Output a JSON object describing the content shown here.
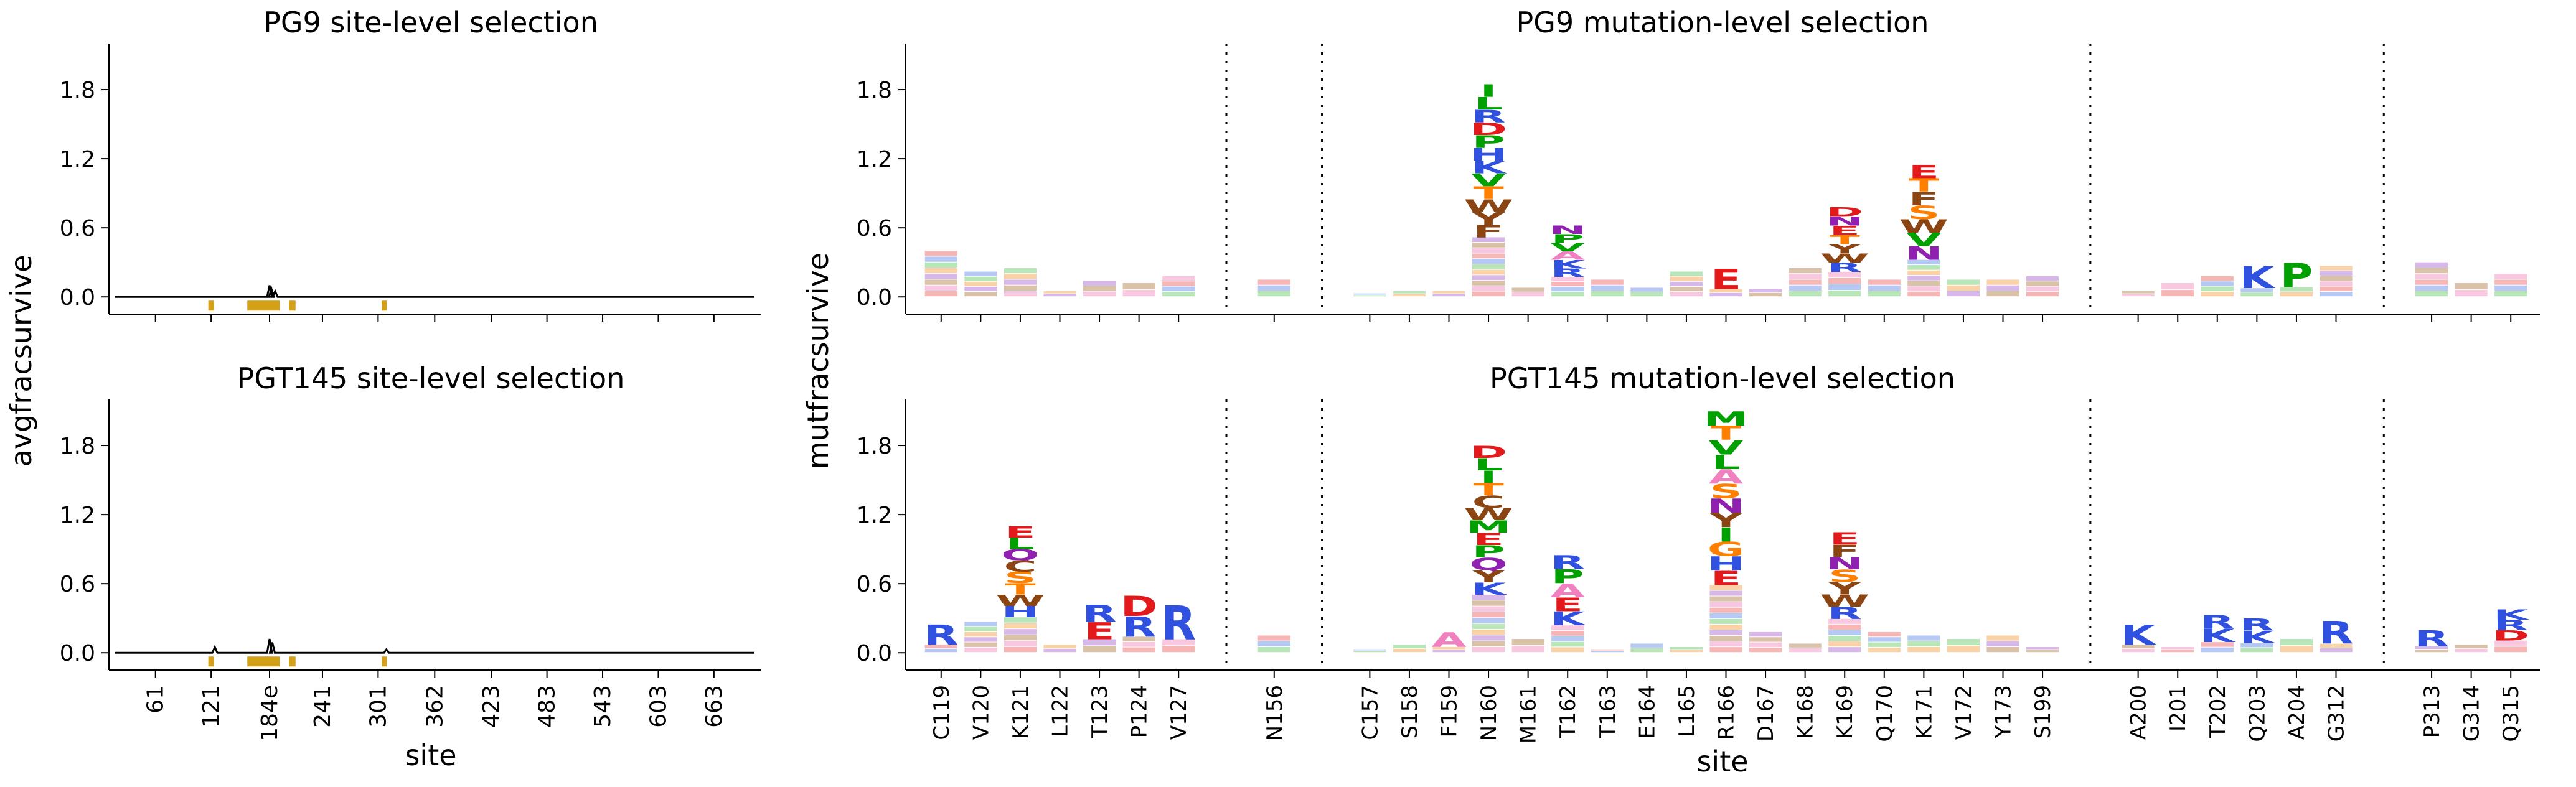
{
  "chart_data": [
    {
      "type": "line",
      "id": "pg9_site",
      "title": "PG9 site-level selection",
      "ylabel": "avgfracsurvive",
      "xlabel": "",
      "ylim": [
        -0.15,
        2.2
      ],
      "yticks": [
        "0.0",
        "0.6",
        "1.2",
        "1.8"
      ],
      "xticks": [
        "61",
        "121",
        "184e",
        "241",
        "301",
        "362",
        "423",
        "483",
        "543",
        "603",
        "663"
      ],
      "series": [
        {
          "name": "avgfracsurvive",
          "baseline": 0.0,
          "peaks": [
            {
              "x": 184,
              "y": 0.1
            },
            {
              "x": 186,
              "y": 0.07
            },
            {
              "x": 190,
              "y": 0.05
            }
          ]
        }
      ],
      "highlighted_regions_color": "#d4a017"
    },
    {
      "type": "line",
      "id": "pgt145_site",
      "title": "PGT145 site-level selection",
      "ylabel": "avgfracsurvive",
      "xlabel": "site",
      "ylim": [
        -0.15,
        2.2
      ],
      "yticks": [
        "0.0",
        "0.6",
        "1.2",
        "1.8"
      ],
      "xticks": [
        "61",
        "121",
        "184e",
        "241",
        "301",
        "362",
        "423",
        "483",
        "543",
        "603",
        "663"
      ],
      "series": [
        {
          "name": "avgfracsurvive",
          "baseline": 0.0,
          "peaks": [
            {
              "x": 125,
              "y": 0.05
            },
            {
              "x": 184,
              "y": 0.12
            },
            {
              "x": 187,
              "y": 0.09
            },
            {
              "x": 310,
              "y": 0.03
            }
          ]
        }
      ],
      "highlighted_regions_color": "#d4a017"
    },
    {
      "type": "logo",
      "id": "pg9_mut",
      "title": "PG9 mutation-level selection",
      "ylabel": "mutfracsurvive",
      "xlabel": "",
      "ylim": [
        -0.15,
        2.2
      ],
      "yticks": [
        "0.0",
        "0.6",
        "1.2",
        "1.8"
      ],
      "sites": [
        {
          "label": "C119",
          "total": 0.4
        },
        {
          "label": "V120",
          "total": 0.22
        },
        {
          "label": "K121",
          "total": 0.25
        },
        {
          "label": "L122",
          "total": 0.05
        },
        {
          "label": "T123",
          "total": 0.14
        },
        {
          "label": "P124",
          "total": 0.12
        },
        {
          "label": "V127",
          "total": 0.18
        },
        {
          "label": "N156",
          "total": 0.15
        },
        {
          "label": "C157",
          "total": 0.03
        },
        {
          "label": "S158",
          "total": 0.05
        },
        {
          "label": "F159",
          "total": 0.05
        },
        {
          "label": "N160",
          "total": 1.85,
          "letters": [
            "I",
            "L",
            "R",
            "D",
            "P",
            "H",
            "K",
            "V",
            "T",
            "W",
            "Y",
            "F"
          ]
        },
        {
          "label": "M161",
          "total": 0.08
        },
        {
          "label": "T162",
          "total": 0.62,
          "letters": [
            "N",
            "P",
            "V",
            "A",
            "K",
            "R"
          ]
        },
        {
          "label": "T163",
          "total": 0.15
        },
        {
          "label": "E164",
          "total": 0.08
        },
        {
          "label": "L165",
          "total": 0.22
        },
        {
          "label": "R166",
          "total": 0.25,
          "letters": [
            "E"
          ]
        },
        {
          "label": "D167",
          "total": 0.07
        },
        {
          "label": "K168",
          "total": 0.25
        },
        {
          "label": "K169",
          "total": 0.78,
          "letters": [
            "D",
            "N",
            "E",
            "T",
            "Y",
            "W",
            "R"
          ]
        },
        {
          "label": "Q170",
          "total": 0.15
        },
        {
          "label": "K171",
          "total": 1.15,
          "letters": [
            "E",
            "T",
            "F",
            "S",
            "W",
            "V",
            "N"
          ]
        },
        {
          "label": "V172",
          "total": 0.15
        },
        {
          "label": "Y173",
          "total": 0.15
        },
        {
          "label": "S199",
          "total": 0.18
        },
        {
          "label": "A200",
          "total": 0.05
        },
        {
          "label": "I201",
          "total": 0.12
        },
        {
          "label": "T202",
          "total": 0.18
        },
        {
          "label": "Q203",
          "total": 0.27,
          "letters": [
            "K"
          ]
        },
        {
          "label": "A204",
          "total": 0.3,
          "letters": [
            "P"
          ]
        },
        {
          "label": "G312",
          "total": 0.27
        },
        {
          "label": "P313",
          "total": 0.3
        },
        {
          "label": "G314",
          "total": 0.12
        },
        {
          "label": "Q315",
          "total": 0.2
        }
      ]
    },
    {
      "type": "logo",
      "id": "pgt145_mut",
      "title": "PGT145 mutation-level selection",
      "ylabel": "mutfracsurvive",
      "xlabel": "site",
      "ylim": [
        -0.15,
        2.2
      ],
      "yticks": [
        "0.0",
        "0.6",
        "1.2",
        "1.8"
      ],
      "sites": [
        {
          "label": "C119",
          "total": 0.25,
          "letters": [
            "R"
          ]
        },
        {
          "label": "V120",
          "total": 0.27
        },
        {
          "label": "K121",
          "total": 1.1,
          "letters": [
            "E",
            "L",
            "Q",
            "C",
            "S",
            "T",
            "W",
            "H"
          ]
        },
        {
          "label": "L122",
          "total": 0.07
        },
        {
          "label": "T123",
          "total": 0.42,
          "letters": [
            "R",
            "E"
          ]
        },
        {
          "label": "P124",
          "total": 0.5,
          "letters": [
            "D",
            "R"
          ]
        },
        {
          "label": "V127",
          "total": 0.42,
          "letters": [
            "R"
          ]
        },
        {
          "label": "N156",
          "total": 0.15
        },
        {
          "label": "C157",
          "total": 0.03
        },
        {
          "label": "S158",
          "total": 0.07
        },
        {
          "label": "F159",
          "total": 0.18,
          "letters": [
            "A"
          ]
        },
        {
          "label": "N160",
          "total": 1.8,
          "letters": [
            "D",
            "L",
            "I",
            "T",
            "C",
            "W",
            "M",
            "E",
            "P",
            "Q",
            "Y",
            "K"
          ]
        },
        {
          "label": "M161",
          "total": 0.12
        },
        {
          "label": "T162",
          "total": 0.85,
          "letters": [
            "R",
            "P",
            "A",
            "E",
            "K"
          ]
        },
        {
          "label": "T163",
          "total": 0.03
        },
        {
          "label": "E164",
          "total": 0.08
        },
        {
          "label": "L165",
          "total": 0.05
        },
        {
          "label": "R166",
          "total": 2.1,
          "letters": [
            "M",
            "T",
            "V",
            "L",
            "A",
            "S",
            "N",
            "Y",
            "I",
            "G",
            "H",
            "E"
          ]
        },
        {
          "label": "D167",
          "total": 0.18
        },
        {
          "label": "K168",
          "total": 0.08
        },
        {
          "label": "K169",
          "total": 1.05,
          "letters": [
            "E",
            "F",
            "N",
            "S",
            "Y",
            "W",
            "R"
          ]
        },
        {
          "label": "Q170",
          "total": 0.18
        },
        {
          "label": "K171",
          "total": 0.15
        },
        {
          "label": "V172",
          "total": 0.12
        },
        {
          "label": "Y173",
          "total": 0.15
        },
        {
          "label": "S199",
          "total": 0.05
        },
        {
          "label": "A200",
          "total": 0.25,
          "letters": [
            "K"
          ]
        },
        {
          "label": "I201",
          "total": 0.05
        },
        {
          "label": "T202",
          "total": 0.33,
          "letters": [
            "R",
            "K"
          ]
        },
        {
          "label": "Q203",
          "total": 0.3,
          "letters": [
            "R",
            "K"
          ]
        },
        {
          "label": "A204",
          "total": 0.12
        },
        {
          "label": "G312",
          "total": 0.28,
          "letters": [
            "R"
          ]
        },
        {
          "label": "P313",
          "total": 0.2,
          "letters": [
            "R"
          ]
        },
        {
          "label": "G314",
          "total": 0.07
        },
        {
          "label": "Q315",
          "total": 0.38,
          "letters": [
            "K",
            "R",
            "D"
          ]
        }
      ]
    }
  ],
  "colors": {
    "I": "#00a000",
    "L": "#00a000",
    "V": "#00a000",
    "M": "#00a000",
    "A": "#f080c0",
    "C": "#8b4513",
    "W": "#8b4513",
    "Y": "#8b4513",
    "F": "#8b4513",
    "D": "#e31a1c",
    "E": "#e31a1c",
    "K": "#3050e0",
    "R": "#3050e0",
    "H": "#3050e0",
    "N": "#9020b0",
    "Q": "#9020b0",
    "S": "#ff8000",
    "T": "#ff8000",
    "G": "#ff8000",
    "P": "#00a000"
  },
  "highlight": "#d4a017"
}
